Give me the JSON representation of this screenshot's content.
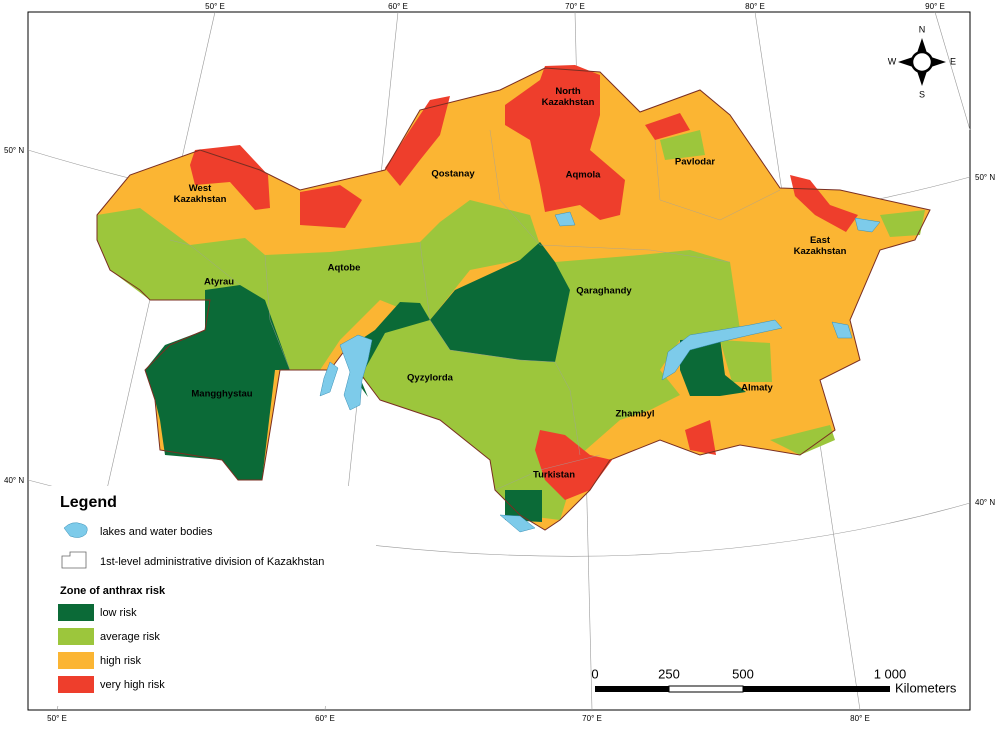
{
  "graticule": {
    "top": [
      "50° E",
      "60° E",
      "70° E",
      "80° E",
      "90° E"
    ],
    "bottom": [
      "50° E",
      "60° E",
      "70° E",
      "80° E"
    ],
    "left": [
      "50° N",
      "40° N"
    ],
    "right": [
      "50° N",
      "40° N"
    ]
  },
  "compass": {
    "n": "N",
    "s": "S",
    "w": "W",
    "e": "E"
  },
  "regions": [
    {
      "lines": [
        "North",
        "Kazakhstan"
      ]
    },
    {
      "lines": [
        "West",
        "Kazakhstan"
      ]
    },
    {
      "lines": [
        "Qostanay"
      ]
    },
    {
      "lines": [
        "Aqmola"
      ]
    },
    {
      "lines": [
        "Pavlodar"
      ]
    },
    {
      "lines": [
        "East",
        "Kazakhstan"
      ]
    },
    {
      "lines": [
        "Atyrau"
      ]
    },
    {
      "lines": [
        "Aqtobe"
      ]
    },
    {
      "lines": [
        "Qaraghandy"
      ]
    },
    {
      "lines": [
        "Qyzylorda"
      ]
    },
    {
      "lines": [
        "Almaty"
      ]
    },
    {
      "lines": [
        "Mangghystau"
      ]
    },
    {
      "lines": [
        "Zhambyl"
      ]
    },
    {
      "lines": [
        "Turkistan"
      ]
    }
  ],
  "legend": {
    "title": "Legend",
    "lakes": "lakes and water bodies",
    "admin": "1st-level administrative division of Kazakhstan",
    "zone_title": "Zone of anthrax risk",
    "zones": [
      {
        "label": "low risk",
        "color": "#0b6a37"
      },
      {
        "label": "average risk",
        "color": "#9cc63c"
      },
      {
        "label": "high risk",
        "color": "#fbb533"
      },
      {
        "label": "very high risk",
        "color": "#ee3e2c"
      }
    ]
  },
  "scale": {
    "labels": [
      "0",
      "250",
      "500",
      "1 000"
    ],
    "unit": "Kilometers"
  }
}
